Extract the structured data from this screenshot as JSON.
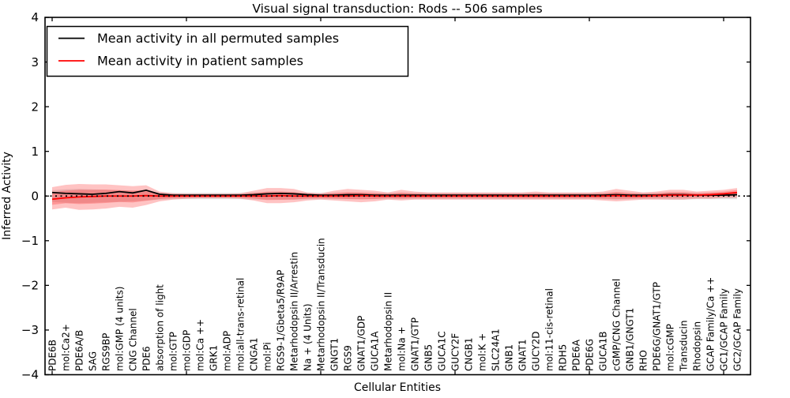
{
  "chart_data": {
    "type": "line",
    "title": "Visual signal transduction: Rods -- 506 samples",
    "xlabel": "Cellular Entities",
    "ylabel": "Inferred Activity",
    "ylim": [
      -4,
      4
    ],
    "grid": false,
    "legend_position": "upper left",
    "ytick_values": [
      4,
      3,
      2,
      1,
      0,
      -1,
      -2,
      -3,
      -4
    ],
    "ytick_labels": [
      "4",
      "3",
      "2",
      "1",
      "0",
      "−1",
      "−2",
      "−3",
      "−4"
    ],
    "xtick_major_indices": [
      0,
      10,
      20,
      30,
      40,
      50
    ],
    "zero_line": {
      "value": 0,
      "style": "dotted",
      "color": "#000000"
    },
    "legend": [
      {
        "label": "Mean activity in all permuted samples",
        "color": "#000000"
      },
      {
        "label": "Mean activity in patient samples",
        "color": "#ff0000"
      }
    ],
    "categories": [
      "PDE6B",
      "mol:Ca2+",
      "PDE6A/B",
      "SAG",
      "RGS9BP",
      "mol:GMP (4 units)",
      "CNG Channel",
      "PDE6",
      "absorption of light",
      "mol:GTP",
      "mol:GDP",
      "mol:Ca ++",
      "GRK1",
      "mol:ADP",
      "mol:all-trans-retinal",
      "CNGA1",
      "mol:Pi",
      "RGS9-1/Gbeta5/R9AP",
      "Metarhodopsin II/Arrestin",
      "Na + (4 Units)",
      "Metarhodopsin II/Transducin",
      "GNGT1",
      "RGS9",
      "GNAT1/GDP",
      "GUCA1A",
      "Metarhodopsin II",
      "mol:Na +",
      "GNAT1/GTP",
      "GNB5",
      "GUCA1C",
      "GUCY2F",
      "CNGB1",
      "mol:K +",
      "SLC24A1",
      "GNB1",
      "GNAT1",
      "GUCY2D",
      "mol:11-cis-retinal",
      "RDH5",
      "PDE6A",
      "PDE6G",
      "GUCA1B",
      "cGMP/CNG Channel",
      "GNB1/GNGT1",
      "RHO",
      "PDE6G/GNAT1/GTP",
      "mol:cGMP",
      "Transducin",
      "Rhodopsin",
      "GCAP Family/Ca ++",
      "GC1/GCAP Family",
      "GC2/GCAP Family"
    ],
    "series": [
      {
        "name": "Mean activity in all permuted samples",
        "color": "#000000",
        "values": [
          0.08,
          0.06,
          0.05,
          0.04,
          0.06,
          0.1,
          0.07,
          0.13,
          0.04,
          0.02,
          0.02,
          0.02,
          0.02,
          0.02,
          0.02,
          0.03,
          0.05,
          0.06,
          0.05,
          0.03,
          0.02,
          0.02,
          0.03,
          0.03,
          0.02,
          0.02,
          0.02,
          0.02,
          0.02,
          0.02,
          0.02,
          0.02,
          0.02,
          0.02,
          0.02,
          0.02,
          0.02,
          0.02,
          0.02,
          0.02,
          0.02,
          0.02,
          0.03,
          0.02,
          0.02,
          0.02,
          0.03,
          0.03,
          0.02,
          0.02,
          0.02,
          0.03
        ]
      },
      {
        "name": "Mean activity in patient samples",
        "color": "#ff0000",
        "values": [
          -0.07,
          -0.04,
          -0.02,
          -0.01,
          0,
          0,
          0,
          0.01,
          0,
          0,
          0,
          0,
          0,
          0,
          0,
          0,
          0,
          0.01,
          0,
          0,
          0,
          0,
          0,
          0.01,
          0,
          0,
          0,
          0,
          0,
          0,
          0,
          0,
          0,
          0,
          0,
          0,
          0,
          0,
          0,
          0,
          0,
          0,
          0.01,
          0,
          0,
          0.01,
          0.02,
          0.02,
          0.02,
          0.03,
          0.05,
          0.08
        ]
      }
    ],
    "bands": [
      {
        "name": "patient-samples-std-band",
        "color": "rgba(255,38,38,0.28)",
        "upper": [
          0.2,
          0.25,
          0.27,
          0.26,
          0.26,
          0.24,
          0.22,
          0.24,
          0.1,
          0.06,
          0.05,
          0.05,
          0.05,
          0.05,
          0.06,
          0.12,
          0.18,
          0.18,
          0.16,
          0.08,
          0.06,
          0.12,
          0.16,
          0.14,
          0.12,
          0.08,
          0.14,
          0.1,
          0.08,
          0.08,
          0.08,
          0.08,
          0.08,
          0.08,
          0.08,
          0.08,
          0.1,
          0.08,
          0.08,
          0.08,
          0.08,
          0.1,
          0.16,
          0.12,
          0.08,
          0.1,
          0.14,
          0.14,
          0.1,
          0.12,
          0.14,
          0.18
        ],
        "lower": [
          -0.3,
          -0.26,
          -0.31,
          -0.3,
          -0.28,
          -0.24,
          -0.26,
          -0.2,
          -0.12,
          -0.08,
          -0.06,
          -0.05,
          -0.05,
          -0.05,
          -0.06,
          -0.1,
          -0.16,
          -0.16,
          -0.14,
          -0.1,
          -0.08,
          -0.1,
          -0.12,
          -0.14,
          -0.12,
          -0.08,
          -0.1,
          -0.08,
          -0.08,
          -0.08,
          -0.08,
          -0.08,
          -0.08,
          -0.08,
          -0.08,
          -0.08,
          -0.08,
          -0.08,
          -0.08,
          -0.08,
          -0.08,
          -0.1,
          -0.12,
          -0.1,
          -0.08,
          -0.08,
          -0.08,
          -0.08,
          -0.06,
          -0.06,
          -0.04,
          -0.04
        ]
      },
      {
        "name": "permuted-samples-std-band",
        "color": "rgba(110,110,110,0.20)",
        "upper": [
          0.13,
          0.15,
          0.16,
          0.15,
          0.14,
          0.13,
          0.12,
          0.1,
          0.08,
          0.07,
          0.07,
          0.07,
          0.07,
          0.07,
          0.07,
          0.08,
          0.08,
          0.08,
          0.08,
          0.07,
          0.07,
          0.07,
          0.07,
          0.07,
          0.07,
          0.07,
          0.07,
          0.07,
          0.07,
          0.07,
          0.07,
          0.07,
          0.07,
          0.07,
          0.07,
          0.07,
          0.07,
          0.07,
          0.07,
          0.07,
          0.07,
          0.07,
          0.08,
          0.07,
          0.07,
          0.07,
          0.08,
          0.08,
          0.07,
          0.07,
          0.07,
          0.07
        ],
        "lower": [
          -0.13,
          -0.15,
          -0.16,
          -0.15,
          -0.14,
          -0.13,
          -0.12,
          -0.1,
          -0.08,
          -0.07,
          -0.07,
          -0.07,
          -0.07,
          -0.07,
          -0.07,
          -0.08,
          -0.08,
          -0.08,
          -0.08,
          -0.07,
          -0.07,
          -0.07,
          -0.07,
          -0.07,
          -0.07,
          -0.07,
          -0.07,
          -0.07,
          -0.07,
          -0.07,
          -0.07,
          -0.07,
          -0.07,
          -0.07,
          -0.07,
          -0.07,
          -0.07,
          -0.07,
          -0.07,
          -0.07,
          -0.07,
          -0.07,
          -0.08,
          -0.07,
          -0.07,
          -0.07,
          -0.08,
          -0.08,
          -0.07,
          -0.07,
          -0.07,
          -0.07
        ]
      }
    ]
  }
}
